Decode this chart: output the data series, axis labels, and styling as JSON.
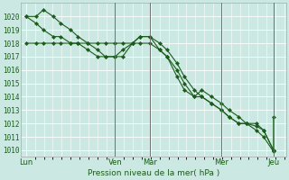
{
  "background_color": "#cce8e2",
  "grid_color": "#ffffff",
  "line_color": "#1a5c1a",
  "ylabel": "Pression niveau de la mer( hPa )",
  "ylim": [
    1009.5,
    1021.0
  ],
  "yticks": [
    1010,
    1011,
    1012,
    1013,
    1014,
    1015,
    1016,
    1017,
    1018,
    1019,
    1020
  ],
  "day_labels": [
    "Lun",
    "Ven",
    "Mar",
    "Mer",
    "Jeu"
  ],
  "day_positions": [
    0,
    0.36,
    0.5,
    0.79,
    1.0
  ],
  "vline_positions": [
    0.36,
    0.5,
    0.79,
    1.0
  ],
  "series1_x": [
    0.0,
    0.04,
    0.07,
    0.11,
    0.14,
    0.18,
    0.21,
    0.25,
    0.29,
    0.32,
    0.36,
    0.39,
    0.43,
    0.46,
    0.5,
    0.54,
    0.57,
    0.61,
    0.64,
    0.68,
    0.71,
    0.75,
    0.79,
    0.82,
    0.86,
    0.89,
    0.93,
    0.96,
    1.0
  ],
  "series1_y": [
    1018.0,
    1018.0,
    1018.0,
    1018.0,
    1018.0,
    1018.0,
    1018.0,
    1018.0,
    1018.0,
    1018.0,
    1018.0,
    1018.0,
    1018.0,
    1018.0,
    1018.0,
    1017.5,
    1017.0,
    1016.0,
    1015.0,
    1014.0,
    1014.0,
    1013.5,
    1013.0,
    1012.5,
    1012.0,
    1012.0,
    1012.0,
    1011.5,
    1010.0
  ],
  "series2_x": [
    0.0,
    0.04,
    0.07,
    0.11,
    0.14,
    0.18,
    0.21,
    0.25,
    0.29,
    0.32,
    0.36,
    0.39,
    0.43,
    0.46,
    0.5,
    0.54,
    0.57,
    0.61,
    0.64,
    0.68,
    0.71,
    0.75,
    0.79,
    0.82,
    0.86,
    0.89,
    0.93,
    0.96,
    1.0
  ],
  "series2_y": [
    1020.0,
    1020.0,
    1020.5,
    1020.0,
    1019.5,
    1019.0,
    1018.5,
    1018.0,
    1017.5,
    1017.0,
    1017.0,
    1017.0,
    1018.0,
    1018.5,
    1018.5,
    1018.0,
    1017.5,
    1016.5,
    1015.5,
    1014.5,
    1014.0,
    1013.5,
    1013.0,
    1012.5,
    1012.0,
    1012.0,
    1011.8,
    1011.5,
    1010.0
  ],
  "series3_x": [
    0.0,
    0.04,
    0.07,
    0.11,
    0.14,
    0.18,
    0.21,
    0.25,
    0.29,
    0.32,
    0.36,
    0.39,
    0.43,
    0.46,
    0.5,
    0.54,
    0.57,
    0.61,
    0.64,
    0.68,
    0.71,
    0.75,
    0.79,
    0.82,
    0.86,
    0.89,
    0.93,
    0.96,
    1.0,
    1.0
  ],
  "series3_y": [
    1020.0,
    1019.5,
    1019.0,
    1018.5,
    1018.5,
    1018.0,
    1018.0,
    1017.5,
    1017.0,
    1017.0,
    1017.0,
    1017.5,
    1018.0,
    1018.5,
    1018.5,
    1017.5,
    1017.0,
    1015.5,
    1014.5,
    1014.0,
    1014.5,
    1014.0,
    1013.5,
    1013.0,
    1012.5,
    1012.0,
    1011.5,
    1011.0,
    1009.9,
    1012.5
  ]
}
